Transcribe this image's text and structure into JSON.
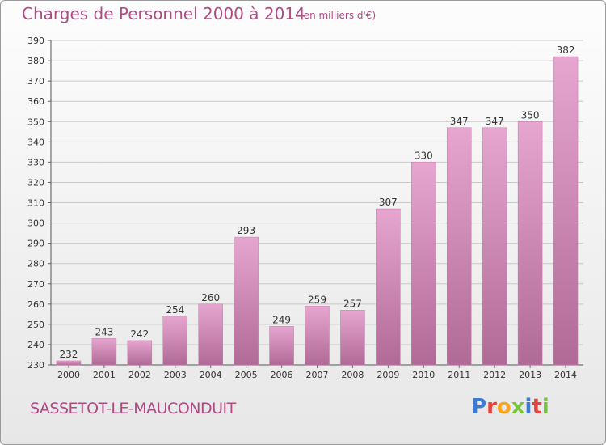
{
  "header": {
    "title": "Charges de Personnel 2000 à 2014",
    "subtitle": "(en milliers d'€)"
  },
  "footer": {
    "commune": "SASSETOT-LE-MAUCONDUIT",
    "logo_text": "Proxiti",
    "logo_colors": [
      "#3a7bd5",
      "#e8413c",
      "#f5a623",
      "#7cc242",
      "#3a7bd5",
      "#e8413c",
      "#7cc242"
    ]
  },
  "colors": {
    "bar_top": "#e6a6cf",
    "bar_bottom": "#b06a96",
    "title": "#b04a82",
    "grid": "#c8c8c8"
  },
  "chart_data": {
    "type": "bar",
    "categories": [
      "2000",
      "2001",
      "2002",
      "2003",
      "2004",
      "2005",
      "2006",
      "2007",
      "2008",
      "2009",
      "2010",
      "2011",
      "2012",
      "2013",
      "2014"
    ],
    "values": [
      232,
      243,
      242,
      254,
      260,
      293,
      249,
      259,
      257,
      307,
      330,
      347,
      347,
      350,
      382
    ],
    "title": "Charges de Personnel 2000 à 2014",
    "subtitle": "(en milliers d'€)",
    "xlabel": "",
    "ylabel": "",
    "ylim": [
      230,
      390
    ],
    "yticks": [
      230,
      240,
      250,
      260,
      270,
      280,
      290,
      300,
      310,
      320,
      330,
      340,
      350,
      360,
      370,
      380,
      390
    ],
    "grid": true,
    "data_labels": true
  }
}
